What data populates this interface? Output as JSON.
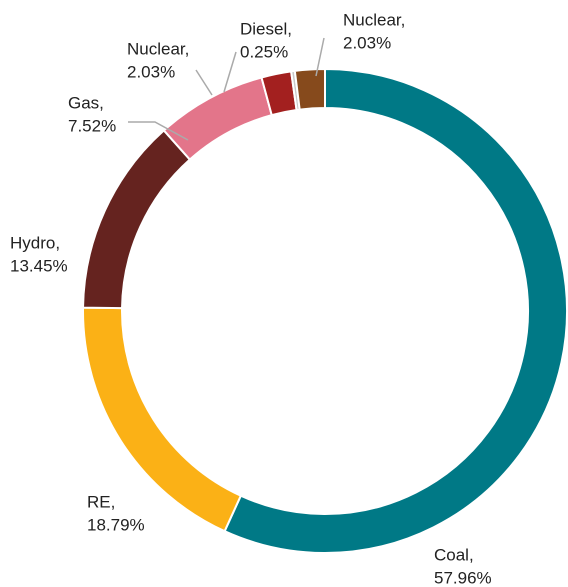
{
  "chart_data": {
    "type": "donut",
    "categories": [
      "Coal,",
      "RE,",
      "Hydro,",
      "Gas,",
      "Nuclear,",
      "Diesel,",
      "Nuclear,"
    ],
    "values": [
      57.96,
      18.79,
      13.45,
      7.52,
      2.03,
      0.25,
      2.03
    ],
    "value_labels": [
      "57.96%",
      "18.79%",
      "13.45%",
      "7.52%",
      "2.03%",
      "0.25%",
      "2.03%"
    ],
    "colors": [
      "#007986",
      "#fbb116",
      "#65231f",
      "#e3758a",
      "#a3201f",
      "#c8c8c8",
      "#864a1c"
    ]
  }
}
